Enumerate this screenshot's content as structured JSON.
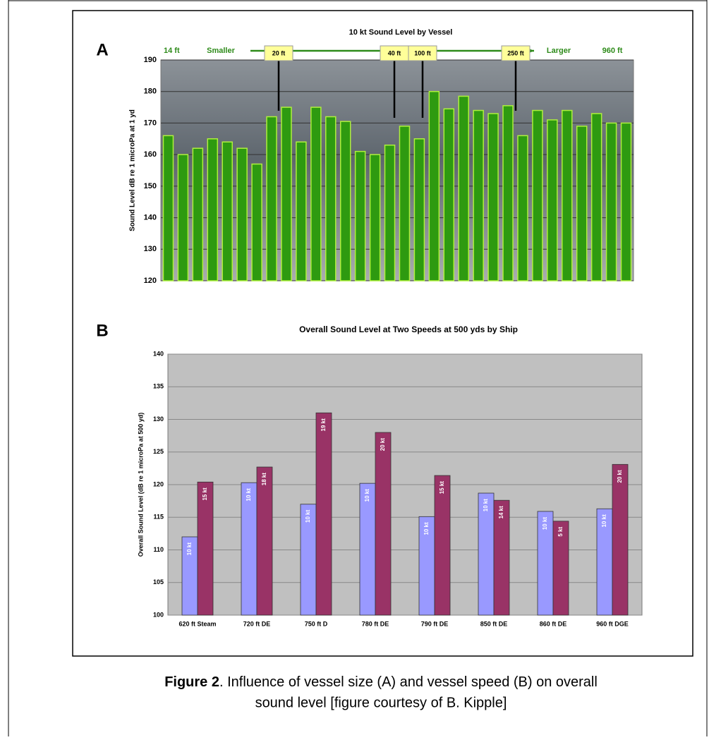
{
  "chart_data": [
    {
      "type": "bar",
      "panel": "A",
      "title": "10 kt Sound Level by Vessel",
      "y_label": "Sound Level dB re 1 microPa at 1 yd",
      "annotations": [
        "14 ft",
        "Smaller",
        "Larger",
        "960 ft",
        "20 ft",
        "40 ft",
        "100 ft",
        "250 ft"
      ],
      "categories": [
        null,
        null,
        null,
        null,
        null,
        null,
        null,
        null,
        null,
        null,
        null,
        null,
        null,
        null,
        null,
        null,
        null,
        null,
        null,
        null,
        null,
        null,
        null,
        null,
        null,
        null,
        null,
        null,
        null,
        null,
        null,
        null
      ],
      "values": [
        166,
        160,
        162,
        165,
        164,
        162,
        157,
        172,
        175,
        164,
        175,
        172,
        170.5,
        161,
        160,
        163,
        169,
        165,
        180,
        174.5,
        178.5,
        174,
        173,
        175.5,
        166,
        174,
        171,
        174,
        169,
        173,
        170,
        170
      ],
      "color": "#2e9a10",
      "ylim": [
        120,
        190
      ],
      "yticks": [
        120,
        130,
        140,
        150,
        160,
        170,
        180,
        190
      ],
      "grid": true
    },
    {
      "type": "grouped-bar",
      "panel": "B",
      "title": "Overall Sound Level at Two Speeds at 500 yds by Ship",
      "y_label": "Overall Sound Level (dB re 1 microPa at 500 yd)",
      "categories": [
        "620 ft Steam",
        "720 ft DE",
        "750 ft D",
        "780 ft DE",
        "790 ft DE",
        "850 ft DE",
        "860 ft DE",
        "960 ft DGE"
      ],
      "series": [
        {
          "color": "#9999ff",
          "values": [
            112,
            120.3,
            117,
            120.2,
            115.1,
            118.7,
            115.9,
            116.3
          ],
          "labels": [
            "10 kt",
            "10 kt",
            "10 kt",
            "10 kt",
            "10 kt",
            "10 kt",
            "10 kt",
            "10 kt"
          ]
        },
        {
          "color": "#993366",
          "values": [
            120.4,
            122.7,
            131,
            128,
            121.4,
            117.6,
            114.4,
            123.1
          ],
          "labels": [
            "15 kt",
            "18 kt",
            "19 kt",
            "20 kt",
            "15 kt",
            "14 kt",
            "5 kt",
            "20 kt"
          ]
        }
      ],
      "ylim": [
        100,
        140
      ],
      "yticks": [
        100,
        105,
        110,
        115,
        120,
        125,
        130,
        135,
        140
      ],
      "grid": true
    }
  ],
  "caption": {
    "label": "Figure 2",
    "text": ".  Influence of vessel size (A) and vessel speed (B) on overall",
    "text2": "sound level [figure courtesy of B. Kipple]"
  }
}
